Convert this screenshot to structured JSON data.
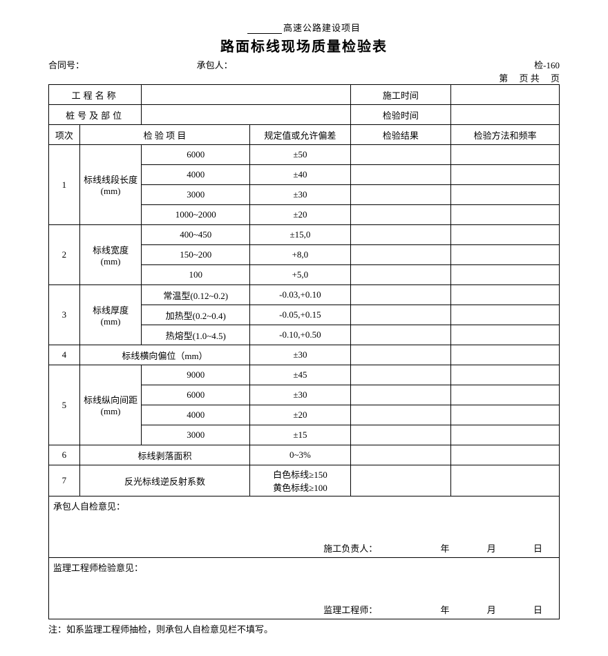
{
  "header": {
    "pretitle_suffix": "高速公路建设项目",
    "title": "路面标线现场质量检验表",
    "form_code": "检-160",
    "contract_no_label": "合同号：",
    "contractor_label": "承包人：",
    "page_prefix": "第",
    "page_mid": "页 共",
    "page_suffix": "页"
  },
  "info": {
    "project_name_label": "工程名称",
    "construction_time_label": "施工时间",
    "station_label": "桩号及部位",
    "inspect_time_label": "检验时间"
  },
  "thead": {
    "idx": "项次",
    "item": "检 验 项 目",
    "tol": "规定值或允许偏差",
    "result": "检验结果",
    "method": "检验方法和频率"
  },
  "rows": {
    "g1": {
      "idx": "1",
      "cat": "标线线段长度(mm)",
      "r": [
        {
          "sub": "6000",
          "tol": "±50"
        },
        {
          "sub": "4000",
          "tol": "±40"
        },
        {
          "sub": "3000",
          "tol": "±30"
        },
        {
          "sub": "1000~2000",
          "tol": "±20"
        }
      ]
    },
    "g2": {
      "idx": "2",
      "cat": "标线宽度(mm)",
      "r": [
        {
          "sub": "400~450",
          "tol": "±15,0"
        },
        {
          "sub": "150~200",
          "tol": "+8,0"
        },
        {
          "sub": "100",
          "tol": "+5,0"
        }
      ]
    },
    "g3": {
      "idx": "3",
      "cat": "标线厚度(mm)",
      "r": [
        {
          "sub": "常温型(0.12~0.2)",
          "tol": "-0.03,+0.10"
        },
        {
          "sub": "加热型(0.2~0.4)",
          "tol": "-0.05,+0.15"
        },
        {
          "sub": "热熔型(1.0~4.5)",
          "tol": "-0.10,+0.50"
        }
      ]
    },
    "g4": {
      "idx": "4",
      "item": "标线横向偏位（mm）",
      "tol": "±30"
    },
    "g5": {
      "idx": "5",
      "cat": "标线纵向间距(mm)",
      "r": [
        {
          "sub": "9000",
          "tol": "±45"
        },
        {
          "sub": "6000",
          "tol": "±30"
        },
        {
          "sub": "4000",
          "tol": "±20"
        },
        {
          "sub": "3000",
          "tol": "±15"
        }
      ]
    },
    "g6": {
      "idx": "6",
      "item": "标线剥落面积",
      "tol": "0~3%"
    },
    "g7": {
      "idx": "7",
      "item": "反光标线逆反射系数",
      "tol": "白色标线≥150\n黄色标线≥100"
    }
  },
  "sign": {
    "contractor_opinion": "承包人自检意见：",
    "construction_leader": "施工负责人：",
    "supervisor_opinion": "监理工程师检验意见：",
    "supervisor": "监理工程师：",
    "y": "年",
    "m": "月",
    "d": "日"
  },
  "note": "注：如系监理工程师抽检，则承包人自检意见栏不填写。"
}
